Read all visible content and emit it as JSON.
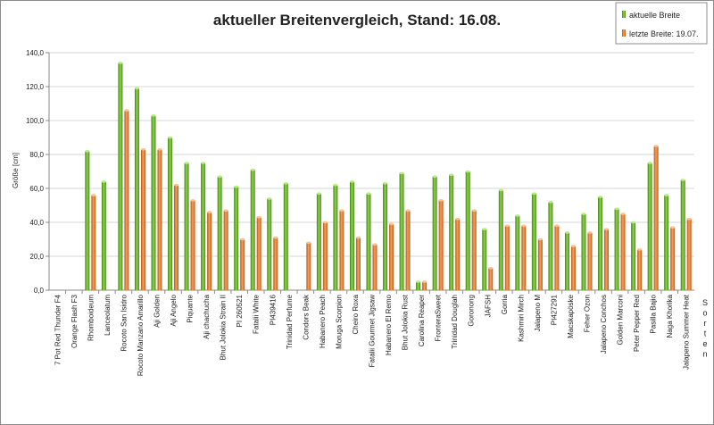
{
  "chart_data": {
    "type": "bar",
    "title": "aktueller Breitenvergleich, Stand: 16.08.",
    "xlabel": "Sorten",
    "ylabel": "Größe [cm]",
    "ylim": [
      0,
      140
    ],
    "yticks": [
      "0,0",
      "20,0",
      "40,0",
      "60,0",
      "80,0",
      "100,0",
      "120,0",
      "140,0"
    ],
    "grid": true,
    "legend_position": "top-right",
    "categories": [
      "7 Pot Red Thunder F4",
      "Orange Flash F3",
      "Rhomboideum",
      "Lanceolatum",
      "Rocoto San Isidro",
      "Rocoto Manzano Amarillo",
      "Aji Golden",
      "Aji Angelo",
      "Piquante",
      "Aji chachucha",
      "Bhut Jolokia Strain II",
      "PI 260521",
      "Fatalii White",
      "PI439416",
      "Trinidad Perfume",
      "Condors Beak",
      "Habanero Peach",
      "Moruga Scorpion",
      "Cheiro Roxa",
      "Fatalii Gourmet Jigsaw",
      "Habanero El Remo",
      "Bhut Jolokia Rust",
      "Carolina Reaper",
      "FronteraSweet",
      "Trinidad Douglah",
      "Goronong",
      "JAFSH",
      "Gorria",
      "Kashmiri Mirch",
      "Jalapeno M",
      "PI427291",
      "Macskapöske",
      "Feher Ozon",
      "Jalapeno Conchos",
      "Golden Marconi",
      "Peter Pepper Red",
      "Pasilla Bajio",
      "Naga Khorika",
      "Jalapeno Summer Heat"
    ],
    "series": [
      {
        "name": "aktuelle Breite",
        "color": "#6ab82a",
        "values": [
          0,
          0,
          82,
          64,
          134,
          119,
          103,
          90,
          75,
          75,
          67,
          61,
          71,
          54,
          63,
          0,
          57,
          62,
          64,
          57,
          63,
          69,
          5,
          67,
          68,
          70,
          36,
          59,
          44,
          57,
          52,
          34,
          45,
          55,
          48,
          40,
          75,
          56,
          65
        ]
      },
      {
        "name": "letzte Breite: 19.07.",
        "color": "#e0792a",
        "values": [
          0,
          0,
          56,
          0,
          106,
          83,
          83,
          62,
          53,
          46,
          47,
          30,
          43,
          31,
          0,
          28,
          40,
          47,
          31,
          27,
          39,
          47,
          5,
          53,
          42,
          47,
          13,
          38,
          38,
          30,
          38,
          26,
          34,
          36,
          45,
          24,
          85,
          37,
          42
        ]
      }
    ]
  }
}
